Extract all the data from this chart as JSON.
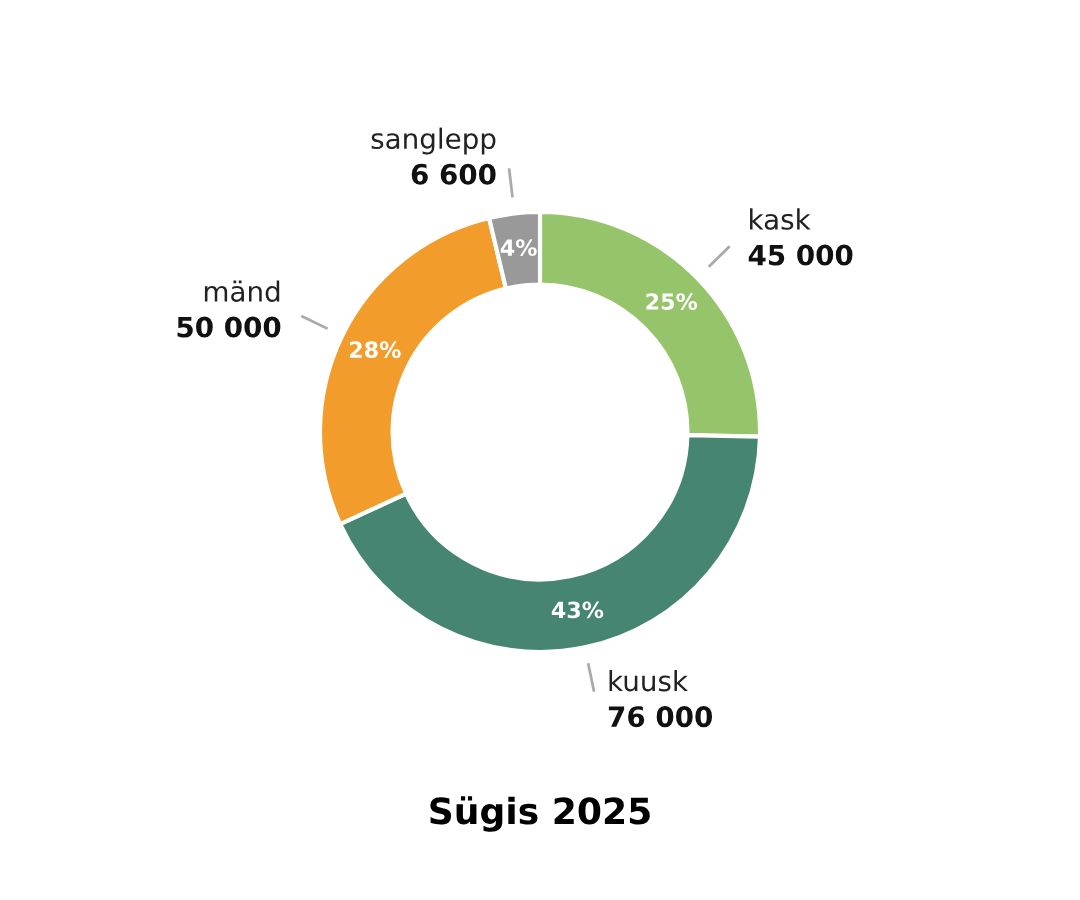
{
  "chart_data": {
    "type": "donut",
    "title": "Sügis 2025",
    "categories": [
      "kask",
      "kuusk",
      "mänd",
      "sanglepp"
    ],
    "values": [
      45000,
      76000,
      50000,
      6600
    ],
    "value_labels": [
      "45 000",
      "76 000",
      "50 000",
      "6 600"
    ],
    "colors": [
      "#96c46a",
      "#468572",
      "#f29c2b",
      "#999999"
    ],
    "annotations": [
      {
        "text": "25%",
        "x": "kask"
      },
      {
        "text": "43%",
        "x": "kuusk"
      },
      {
        "text": "28%",
        "x": "mänd"
      },
      {
        "text": "4%",
        "x": "sanglepp"
      }
    ],
    "legend": false
  }
}
